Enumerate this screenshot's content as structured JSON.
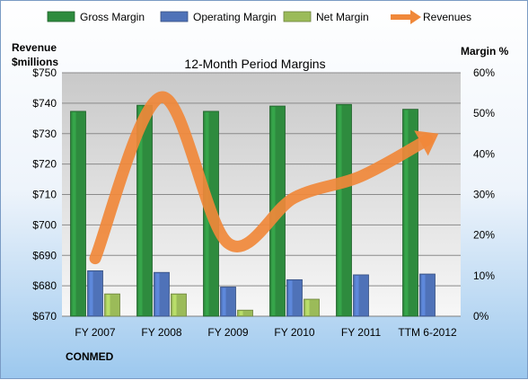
{
  "chart_data": {
    "type": "bar",
    "title": "12-Month Period Margins",
    "ylabel_left": [
      "Revenue",
      "$millions"
    ],
    "ylabel_right": "Margin %",
    "footer_label": "CONMED",
    "categories": [
      "FY 2007",
      "FY 2008",
      "FY 2009",
      "FY 2010",
      "FY 2011",
      "TTM 6-2012"
    ],
    "ylim_left": [
      670,
      750
    ],
    "yticks_left": [
      "$670",
      "$680",
      "$690",
      "$700",
      "$710",
      "$720",
      "$730",
      "$740",
      "$750"
    ],
    "ylim_right": [
      0,
      60
    ],
    "yticks_right": [
      "0%",
      "10%",
      "20%",
      "30%",
      "40%",
      "50%",
      "60%"
    ],
    "grid": true,
    "legend_position": "top",
    "series": [
      {
        "name": "Gross Margin",
        "axis": "right",
        "kind": "bar",
        "color": "#2e8b3e",
        "values": [
          50.5,
          52,
          50.5,
          51.8,
          52.2,
          51
        ]
      },
      {
        "name": "Operating Margin",
        "axis": "right",
        "kind": "bar",
        "color": "#4f72b8",
        "values": [
          11.2,
          10.8,
          7.2,
          9,
          10.2,
          10.4
        ]
      },
      {
        "name": "Net Margin",
        "axis": "right",
        "kind": "bar",
        "color": "#9bbb59",
        "values": [
          5.5,
          5.5,
          1.5,
          4.2,
          0,
          0
        ]
      },
      {
        "name": "Revenues",
        "axis": "left",
        "kind": "line",
        "color": "#f0883a",
        "values": [
          689,
          742,
          694,
          709,
          716,
          728
        ]
      }
    ]
  }
}
